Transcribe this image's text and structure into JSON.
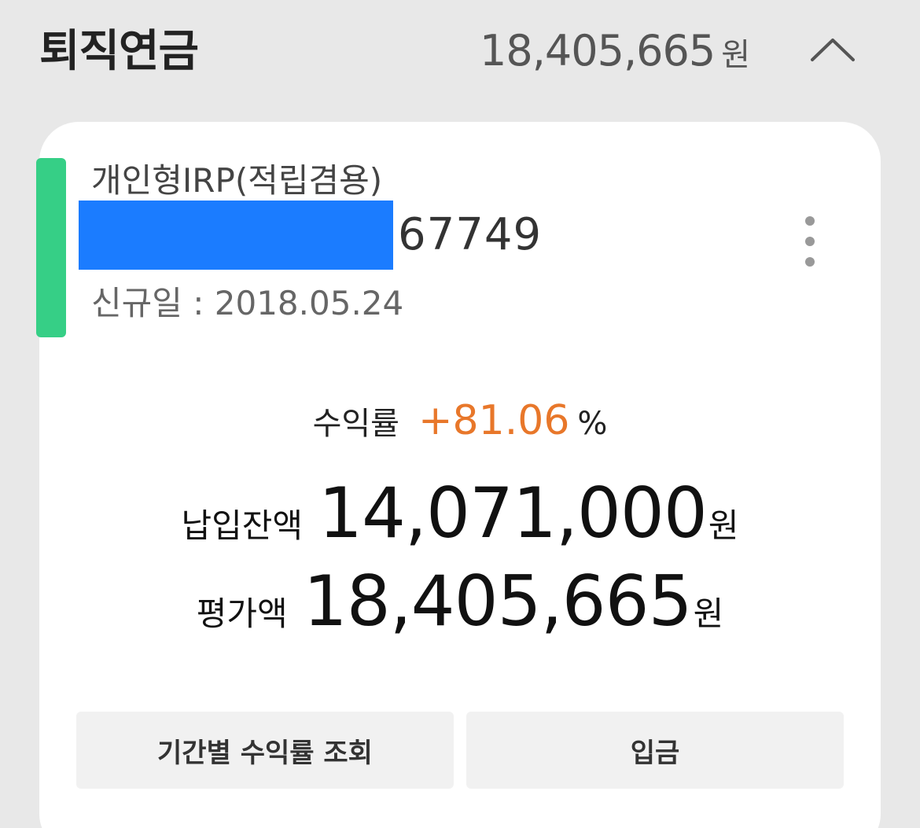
{
  "section": {
    "title": "퇴직연금",
    "total_amount": "18,405,665",
    "total_unit": "원",
    "collapse_icon": "chevron-up-icon"
  },
  "account": {
    "type": "개인형IRP(적립겸용)",
    "number_tail": "67749",
    "mask_color": "#1b7cff",
    "accent_color": "#36cf86",
    "open_date": "신규일 : 2018.05.24",
    "more_icon": "more-vertical-icon"
  },
  "summary": {
    "rate_label": "수익률",
    "rate_value": "+81.06",
    "rate_unit": "%",
    "rate_color": "#e8772a",
    "paid_label": "납입잔액",
    "paid_value": "14,071,000",
    "paid_unit": "원",
    "eval_label": "평가액",
    "eval_value": "18,405,665",
    "eval_unit": "원"
  },
  "actions": {
    "period_return_label": "기간별 수익률 조회",
    "deposit_label": "입금"
  }
}
